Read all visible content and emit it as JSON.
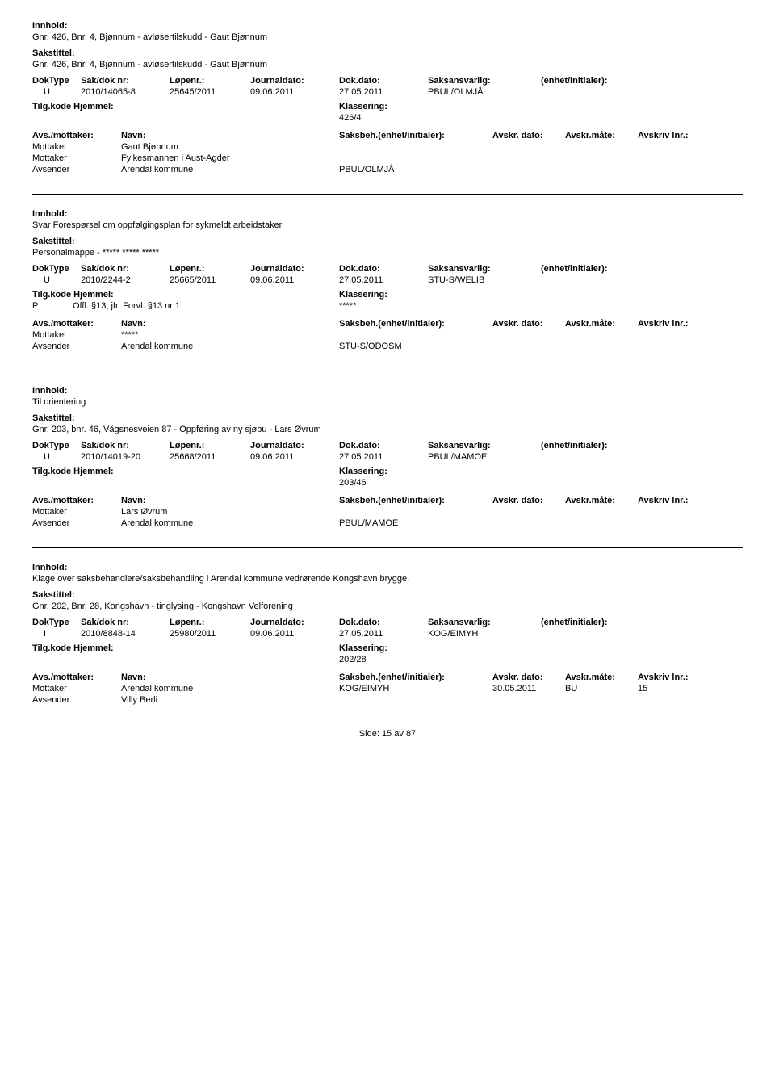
{
  "labels": {
    "innhold": "Innhold:",
    "sakstittel": "Sakstittel:",
    "doktype": "DokType",
    "sakdok": "Sak/dok nr:",
    "lopenr": "Løpenr.:",
    "jdato": "Journaldato:",
    "ddato": "Dok.dato:",
    "saksansv": "Saksansvarlig:",
    "enhet": "(enhet/initialer):",
    "tilgkode": "Tilg.kode",
    "hjemmel": "Hjemmel:",
    "klassering": "Klassering:",
    "avsmottaker": "Avs./mottaker:",
    "navn": "Navn:",
    "saksbeh": "Saksbeh.(enhet/initialer):",
    "avskrdato": "Avskr. dato:",
    "avskrmate": "Avskr.måte:",
    "avskrivlnr": "Avskriv lnr.:",
    "mottaker": "Mottaker",
    "avsender": "Avsender"
  },
  "entries": [
    {
      "innhold": "Gnr. 426, Bnr. 4, Bjønnum - avløsertilskudd - Gaut Bjønnum",
      "sakstittel": "Gnr. 426, Bnr. 4, Bjønnum - avløsertilskudd - Gaut Bjønnum",
      "doktype": "U",
      "sakdok": "2010/14065-8",
      "lopenr": "25645/2011",
      "jdato": "09.06.2011",
      "ddato": "27.05.2011",
      "saksansv": "PBUL/OLMJÅ",
      "enhet": "",
      "hjemmel_p": "",
      "hjemmel_text": "",
      "klassering": "426/4",
      "parties": [
        {
          "role": "Mottaker",
          "name": "Gaut Bjønnum",
          "beh": "",
          "avdato": "",
          "avmate": "",
          "avlnr": ""
        },
        {
          "role": "Mottaker",
          "name": "Fylkesmannen i Aust-Agder",
          "beh": "",
          "avdato": "",
          "avmate": "",
          "avlnr": ""
        },
        {
          "role": "Avsender",
          "name": "Arendal kommune",
          "beh": "PBUL/OLMJÅ",
          "avdato": "",
          "avmate": "",
          "avlnr": ""
        }
      ]
    },
    {
      "innhold": "Svar Forespørsel om oppfølgingsplan for sykmeldt arbeidstaker",
      "sakstittel": "Personalmappe - ***** ***** *****",
      "doktype": "U",
      "sakdok": "2010/2244-2",
      "lopenr": "25665/2011",
      "jdato": "09.06.2011",
      "ddato": "27.05.2011",
      "saksansv": "STU-S/WELIB",
      "enhet": "",
      "hjemmel_p": "P",
      "hjemmel_text": "Offl. §13, jfr. Forvl. §13 nr 1",
      "klassering": "*****",
      "parties": [
        {
          "role": "Mottaker",
          "name": "*****",
          "beh": "",
          "avdato": "",
          "avmate": "",
          "avlnr": ""
        },
        {
          "role": "Avsender",
          "name": "Arendal kommune",
          "beh": "STU-S/ODOSM",
          "avdato": "",
          "avmate": "",
          "avlnr": ""
        }
      ]
    },
    {
      "innhold": "Til orientering",
      "sakstittel": "Gnr. 203, bnr. 46, Vågsnesveien 87 - Oppføring av ny sjøbu - Lars Øvrum",
      "doktype": "U",
      "sakdok": "2010/14019-20",
      "lopenr": "25668/2011",
      "jdato": "09.06.2011",
      "ddato": "27.05.2011",
      "saksansv": "PBUL/MAMOE",
      "enhet": "",
      "hjemmel_p": "",
      "hjemmel_text": "",
      "klassering": "203/46",
      "parties": [
        {
          "role": "Mottaker",
          "name": "Lars Øvrum",
          "beh": "",
          "avdato": "",
          "avmate": "",
          "avlnr": ""
        },
        {
          "role": "Avsender",
          "name": "Arendal kommune",
          "beh": "PBUL/MAMOE",
          "avdato": "",
          "avmate": "",
          "avlnr": ""
        }
      ]
    },
    {
      "innhold": "Klage over saksbehandlere/saksbehandling i Arendal kommune vedrørende Kongshavn brygge.",
      "sakstittel": "Gnr. 202, Bnr. 28, Kongshavn - tinglysing - Kongshavn Velforening",
      "doktype": "I",
      "sakdok": "2010/8848-14",
      "lopenr": "25980/2011",
      "jdato": "09.06.2011",
      "ddato": "27.05.2011",
      "saksansv": "KOG/EIMYH",
      "enhet": "",
      "hjemmel_p": "",
      "hjemmel_text": "",
      "klassering": "202/28",
      "parties": [
        {
          "role": "Mottaker",
          "name": "Arendal kommune",
          "beh": "KOG/EIMYH",
          "avdato": "30.05.2011",
          "avmate": "BU",
          "avlnr": "15"
        },
        {
          "role": "Avsender",
          "name": "Villy Berli",
          "beh": "",
          "avdato": "",
          "avmate": "",
          "avlnr": ""
        }
      ]
    }
  ],
  "footer": {
    "prefix": "Side:",
    "current": "15",
    "sep": "av",
    "total": "87"
  }
}
